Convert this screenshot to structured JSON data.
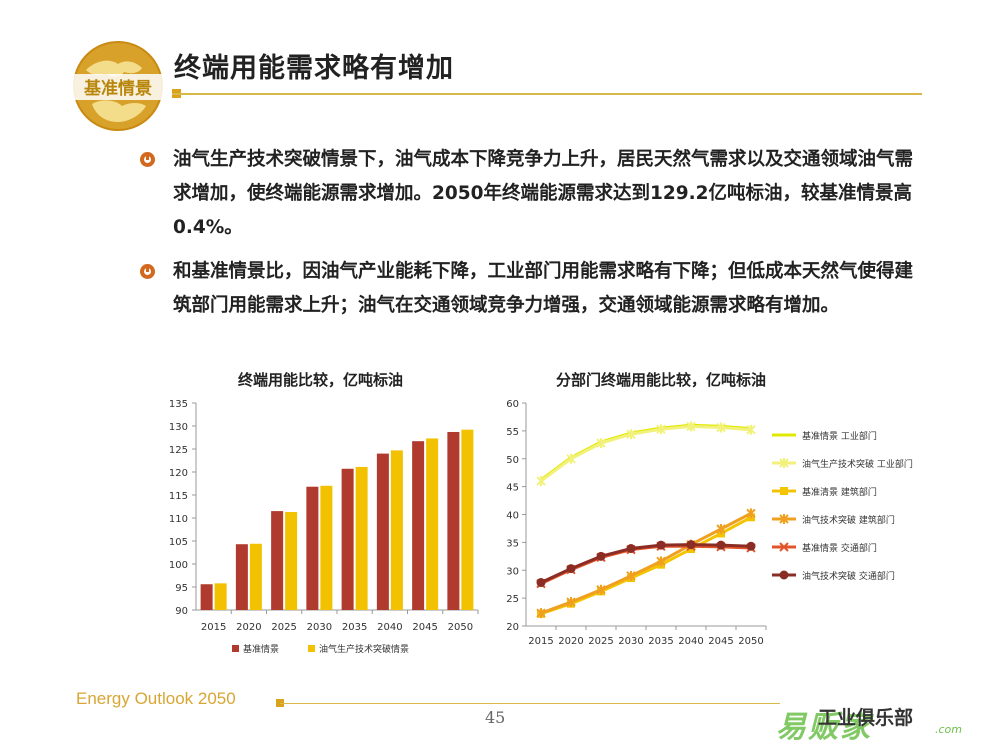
{
  "header": {
    "logo_text": "基准情景",
    "title": "终端用能需求略有增加"
  },
  "bullets": [
    "油气生产技术突破情景下，油气成本下降竞争力上升，居民天然气需求以及交通领域油气需求增加，使终端能源需求增加。2050年终端能源需求达到129.2亿吨标油，较基准情景高0.4%。",
    "和基准情景比，因油气产业能耗下降，工业部门用能需求略有下降；但低成本天然气使得建筑部门用能需求上升；油气在交通领域竞争力增强，交通领域能源需求略有增加。"
  ],
  "footer": {
    "brand": "Energy Outlook 2050",
    "page": "45",
    "watermark": "工业俱乐部",
    "watermark_logo": "易贩家",
    "watermark_url": ".com"
  },
  "colors": {
    "base": "#b03a2e",
    "oil": "#f2c200",
    "line_base_industry": "#e0e800",
    "line_oil_industry": "#f2f27a",
    "line_base_building": "#f4c400",
    "line_oil_building": "#f0a020",
    "line_base_transport": "#e2552a",
    "line_oil_transport": "#8b2d24",
    "accent": "#d9a31c"
  },
  "chart_data": [
    {
      "type": "bar",
      "title": "终端用能比较，亿吨标油",
      "categories": [
        "2015",
        "2020",
        "2025",
        "2030",
        "2035",
        "2040",
        "2045",
        "2050"
      ],
      "ylim": [
        90,
        135
      ],
      "yticks": [
        90,
        95,
        100,
        105,
        110,
        115,
        120,
        125,
        130,
        135
      ],
      "grid": false,
      "legend": "bottom",
      "series": [
        {
          "name": "基准情景",
          "values": [
            95.6,
            104.3,
            111.5,
            116.8,
            120.7,
            124.0,
            126.7,
            128.7
          ]
        },
        {
          "name": "油气生产技术突破情景",
          "values": [
            95.8,
            104.4,
            111.3,
            117.0,
            121.1,
            124.7,
            127.3,
            129.2
          ]
        }
      ]
    },
    {
      "type": "line",
      "title": "分部门终端用能比较，亿吨标油",
      "x": [
        "2015",
        "2020",
        "2025",
        "2030",
        "2035",
        "2040",
        "2045",
        "2050"
      ],
      "ylim": [
        20,
        60
      ],
      "yticks": [
        20,
        25,
        30,
        35,
        40,
        45,
        50,
        55,
        60
      ],
      "grid": false,
      "legend": "right",
      "series": [
        {
          "name": "基准情景 工业部门",
          "values": [
            46.2,
            50.2,
            53.0,
            54.6,
            55.5,
            56.0,
            55.8,
            55.4
          ]
        },
        {
          "name": "油气生产技术突破 工业部门",
          "values": [
            46.0,
            50.0,
            52.8,
            54.4,
            55.3,
            55.8,
            55.6,
            55.2
          ]
        },
        {
          "name": "基准清景 建筑部门",
          "values": [
            22.2,
            24.0,
            26.2,
            28.6,
            31.0,
            33.8,
            36.6,
            39.5
          ]
        },
        {
          "name": "油气技术突破 建筑部门",
          "values": [
            22.3,
            24.3,
            26.5,
            29.0,
            31.6,
            34.6,
            37.4,
            40.2
          ]
        },
        {
          "name": "基准情景 交通部门",
          "values": [
            27.6,
            30.1,
            32.3,
            33.7,
            34.3,
            34.3,
            34.2,
            34.0
          ]
        },
        {
          "name": "油气技术突破 交通部门",
          "values": [
            27.8,
            30.3,
            32.5,
            33.9,
            34.5,
            34.6,
            34.5,
            34.3
          ]
        }
      ]
    }
  ]
}
